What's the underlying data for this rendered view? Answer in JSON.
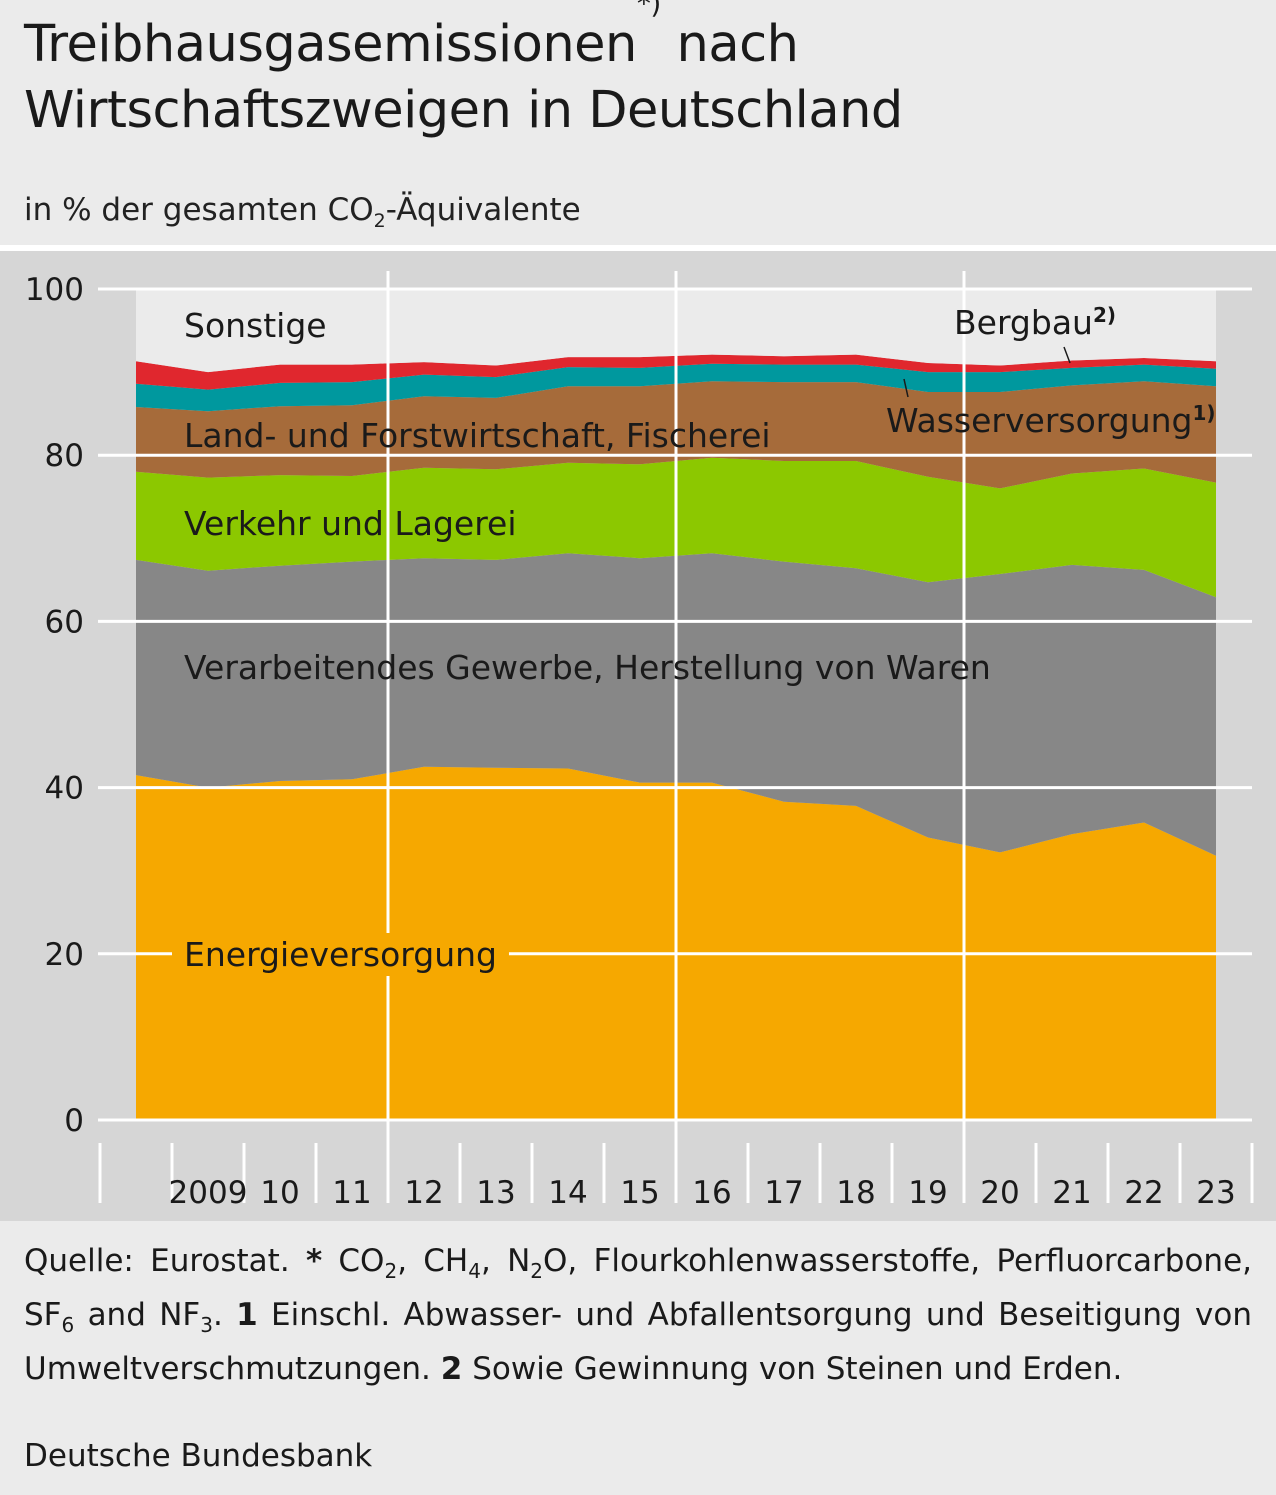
{
  "title": {
    "line1_a": "Treibhausgasemissionen",
    "line1_sup": "*)",
    "line1_b": " nach",
    "line2": "Wirtschaftszweigen in Deutschland"
  },
  "subtitle": {
    "a": "in % der gesamten CO",
    "sub": "2",
    "b": "-Äquivalente"
  },
  "chart_data": {
    "type": "area",
    "stacked": true,
    "title": "Treibhausgasemissionen nach Wirtschaftszweigen in Deutschland",
    "ylabel": "in % der gesamten CO2-Äquivalente",
    "xlabel": "",
    "ylim": [
      0,
      100
    ],
    "yticks": [
      "0",
      "20",
      "40",
      "60",
      "80",
      "100"
    ],
    "x": [
      2008,
      2009,
      2010,
      2011,
      2012,
      2013,
      2014,
      2015,
      2016,
      2017,
      2018,
      2019,
      2020,
      2021,
      2022,
      2023
    ],
    "xtick_labels": [
      "2009",
      "10",
      "11",
      "12",
      "13",
      "14",
      "15",
      "16",
      "17",
      "18",
      "19",
      "20",
      "21",
      "22",
      "23"
    ],
    "series": [
      {
        "name": "Energieversorgung",
        "color": "#f6a800",
        "values": [
          41.5,
          40.0,
          40.8,
          41.0,
          42.5,
          42.4,
          42.3,
          40.6,
          40.6,
          38.3,
          37.8,
          34.0,
          32.2,
          34.4,
          35.8,
          31.8
        ]
      },
      {
        "name": "Verarbeitendes Gewerbe, Herstellung von Waren",
        "color": "#878787",
        "values": [
          25.9,
          26.1,
          25.9,
          26.2,
          25.1,
          25.0,
          25.9,
          27.0,
          27.6,
          28.9,
          28.6,
          30.7,
          33.5,
          32.4,
          30.4,
          31.1
        ]
      },
      {
        "name": "Verkehr und Lagerei",
        "color": "#8cc800",
        "values": [
          10.6,
          11.2,
          10.9,
          10.3,
          10.9,
          10.9,
          10.9,
          11.3,
          11.5,
          12.1,
          12.9,
          12.7,
          10.3,
          11.0,
          12.2,
          13.8
        ]
      },
      {
        "name": "Land- und Forstwirtschaft, Fischerei",
        "color": "#a66b3a",
        "values": [
          7.8,
          8.0,
          8.3,
          8.5,
          8.6,
          8.6,
          9.2,
          9.4,
          9.2,
          9.5,
          9.5,
          10.2,
          11.6,
          10.6,
          10.5,
          11.6
        ]
      },
      {
        "name": "Wasserversorgung",
        "footnote": "1)",
        "color": "#00989e",
        "values": [
          2.8,
          2.6,
          2.8,
          2.8,
          2.6,
          2.5,
          2.3,
          2.2,
          2.1,
          2.1,
          2.1,
          2.4,
          2.4,
          2.1,
          2.0,
          2.1
        ]
      },
      {
        "name": "Bergbau",
        "footnote": "2)",
        "color": "#e0272e",
        "values": [
          2.7,
          2.1,
          2.2,
          2.1,
          1.5,
          1.4,
          1.2,
          1.3,
          1.1,
          1.0,
          1.2,
          1.1,
          0.8,
          0.9,
          0.8,
          0.9
        ]
      },
      {
        "name": "Sonstige",
        "color": "#ebebeb",
        "values": [
          8.7,
          10.0,
          9.1,
          9.1,
          8.8,
          9.2,
          8.2,
          8.2,
          7.9,
          8.1,
          7.9,
          8.9,
          9.2,
          8.6,
          8.3,
          8.7
        ]
      }
    ],
    "area_labels": [
      {
        "text": "Sonstige"
      },
      {
        "text": "Land- und Forstwirtschaft, Fischerei"
      },
      {
        "text": "Verkehr und Lagerei"
      },
      {
        "text": "Verarbeitendes Gewerbe, Herstellung von Waren"
      },
      {
        "text": "Energieversorgung",
        "bold": true
      },
      {
        "text": "Bergbau",
        "sup": "2)"
      },
      {
        "text": "Wasserversorgung",
        "sup": "1)"
      }
    ]
  },
  "footer": {
    "notes_html": "Quelle: Eurostat. <b>*</b> CO<sub>2</sub>, CH<sub>4</sub>, N<sub>2</sub>O, Flourkohlenwasserstoffe, Perfluorcarbone, SF<sub>6</sub> and NF<sub>3</sub>. <b>1</b> Einschl. Abwasser- und Abfallentsorgung und Beseitigung von Umweltverschmutzungen. <b>2</b> Sowie Gewinnung von Steinen und Erden.",
    "brand": "Deutsche Bundesbank"
  }
}
